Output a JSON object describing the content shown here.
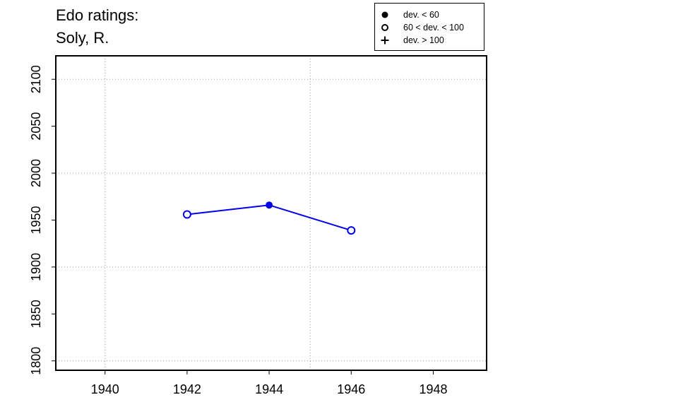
{
  "title_lines": [
    "Edo ratings:",
    "Soly, R."
  ],
  "legend": {
    "items": [
      {
        "label": "dev. < 60",
        "symbol": "filled-circle"
      },
      {
        "label": "60 < dev. < 100",
        "symbol": "open-circle"
      },
      {
        "label": "dev. > 100",
        "symbol": "plus"
      }
    ]
  },
  "colors": {
    "series": "#0000ee",
    "grid": "#999999",
    "axis": "#000000"
  },
  "chart_data": {
    "type": "line",
    "xlim": [
      1938.8,
      1949.3
    ],
    "ylim": [
      1790,
      2125
    ],
    "x_ticks": [
      1940,
      1942,
      1944,
      1946,
      1948
    ],
    "y_ticks": [
      1800,
      1850,
      1900,
      1950,
      2000,
      2050,
      2100
    ],
    "x_grid": [
      1940,
      1945
    ],
    "y_grid": [
      1800,
      1900,
      2000,
      2100
    ],
    "grid": true,
    "legend_position": "top-right",
    "series": [
      {
        "points": [
          {
            "x": 1942,
            "y": 1956,
            "marker": "open-circle"
          },
          {
            "x": 1944,
            "y": 1966,
            "marker": "filled-circle"
          },
          {
            "x": 1946,
            "y": 1939,
            "marker": "open-circle"
          }
        ]
      }
    ]
  }
}
